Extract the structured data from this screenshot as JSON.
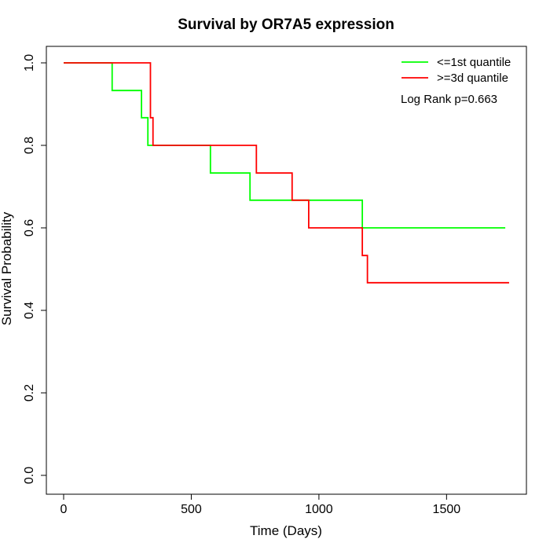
{
  "chart_data": {
    "type": "line",
    "title": "Survival by OR7A5 expression",
    "xlabel": "Time (Days)",
    "ylabel": "Survival Probability",
    "xlim": [
      0,
      1800
    ],
    "ylim": [
      0,
      1.0
    ],
    "xticks": [
      0,
      500,
      1000,
      1500
    ],
    "xtick_labels": [
      "0",
      "500",
      "1000",
      "1500"
    ],
    "yticks": [
      0.0,
      0.2,
      0.4,
      0.6,
      0.8,
      1.0
    ],
    "ytick_labels": [
      "0.0",
      "0.2",
      "0.4",
      "0.6",
      "0.8",
      "1.0"
    ],
    "grid": false,
    "legend_position": "top-right",
    "annotation": "Log Rank p=0.663",
    "series": [
      {
        "name": "<=1st quantile",
        "color": "#00ff00",
        "step": true,
        "x": [
          0,
          190,
          305,
          330,
          575,
          730,
          1170,
          1730
        ],
        "y": [
          1.0,
          0.933,
          0.867,
          0.8,
          0.733,
          0.667,
          0.6,
          0.6
        ]
      },
      {
        "name": ">=3d quantile",
        "color": "#ff0000",
        "step": true,
        "x": [
          0,
          340,
          350,
          755,
          895,
          960,
          1170,
          1190,
          1745
        ],
        "y": [
          1.0,
          0.867,
          0.8,
          0.733,
          0.667,
          0.6,
          0.533,
          0.467,
          0.467
        ]
      }
    ]
  }
}
